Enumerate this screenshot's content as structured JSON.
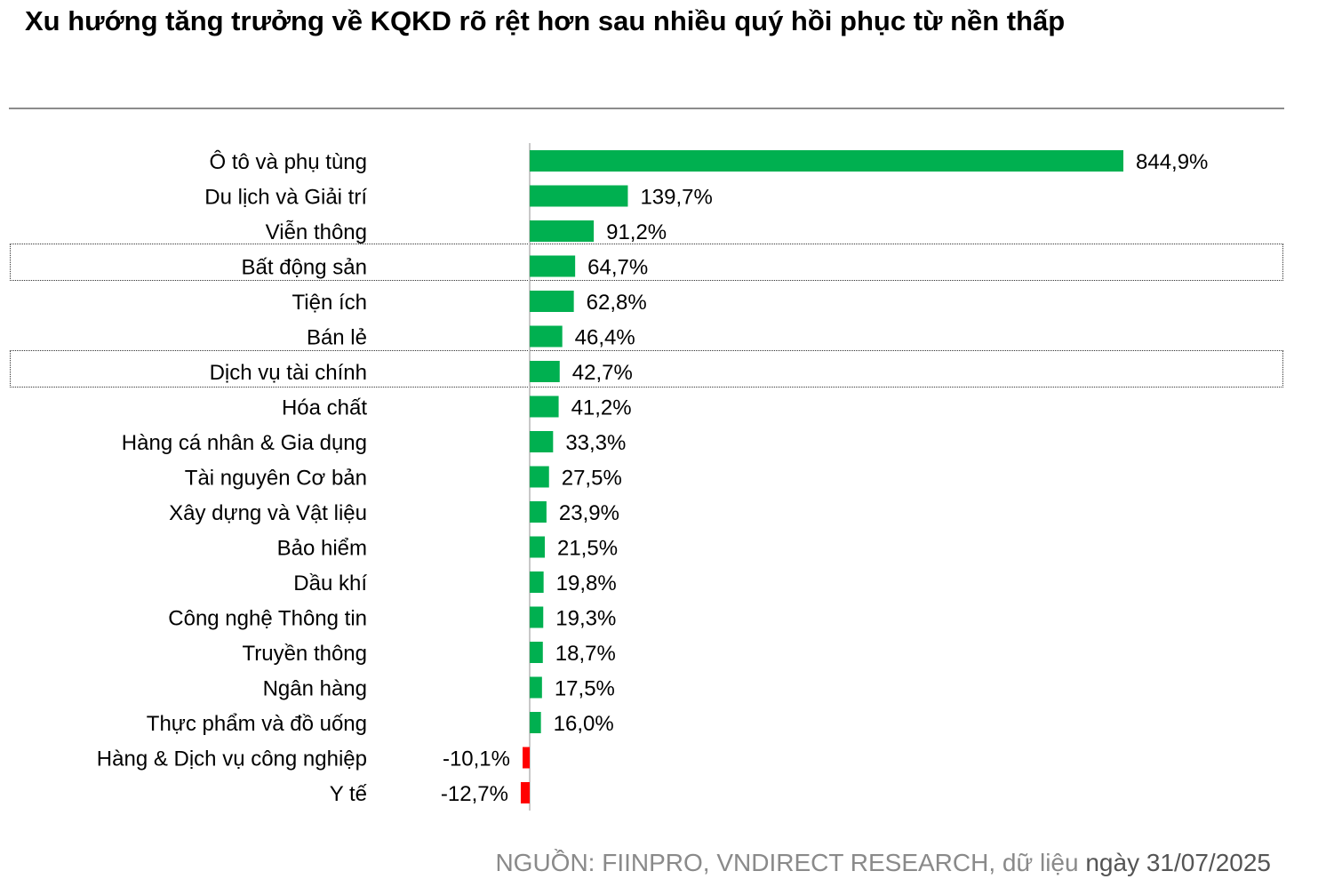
{
  "title": "Xu hướng tăng trưởng về KQKD rõ rệt hơn sau nhiều quý hồi phục từ nền thấp",
  "source": {
    "prefix": "NGUỒN: FIINPRO, VNDIRECT RESEARCH, dữ liệu ",
    "date": "ngày 31/07/2025"
  },
  "highlighted_categories": [
    "Bất động sản",
    "Dịch vụ tài chính"
  ],
  "colors": {
    "positive": "#00b050",
    "negative": "#ff0000",
    "axis": "#c8c8c8"
  },
  "chart_data": {
    "type": "bar",
    "orientation": "horizontal",
    "categories": [
      "Ô tô và phụ tùng",
      "Du lịch và Giải trí",
      "Viễn thông",
      "Bất động sản",
      "Tiện ích",
      "Bán lẻ",
      "Dịch vụ tài chính",
      "Hóa chất",
      "Hàng cá nhân & Gia dụng",
      "Tài nguyên Cơ bản",
      "Xây dựng và Vật liệu",
      "Bảo hiểm",
      "Dầu khí",
      "Công nghệ Thông tin",
      "Truyền thông",
      "Ngân hàng",
      "Thực phẩm và đồ uống",
      "Hàng & Dịch vụ công nghiệp",
      "Y tế"
    ],
    "values": [
      844.9,
      139.7,
      91.2,
      64.7,
      62.8,
      46.4,
      42.7,
      41.2,
      33.3,
      27.5,
      23.9,
      21.5,
      19.8,
      19.3,
      18.7,
      17.5,
      16.0,
      -10.1,
      -12.7
    ],
    "data_labels": [
      "844,9%",
      "139,7%",
      "91,2%",
      "64,7%",
      "62,8%",
      "46,4%",
      "42,7%",
      "41,2%",
      "33,3%",
      "27,5%",
      "23,9%",
      "21,5%",
      "19,8%",
      "19,3%",
      "18,7%",
      "17,5%",
      "16,0%",
      "-10,1%",
      "-12,7%"
    ],
    "unit": "%",
    "legend": "none",
    "grid": false
  }
}
